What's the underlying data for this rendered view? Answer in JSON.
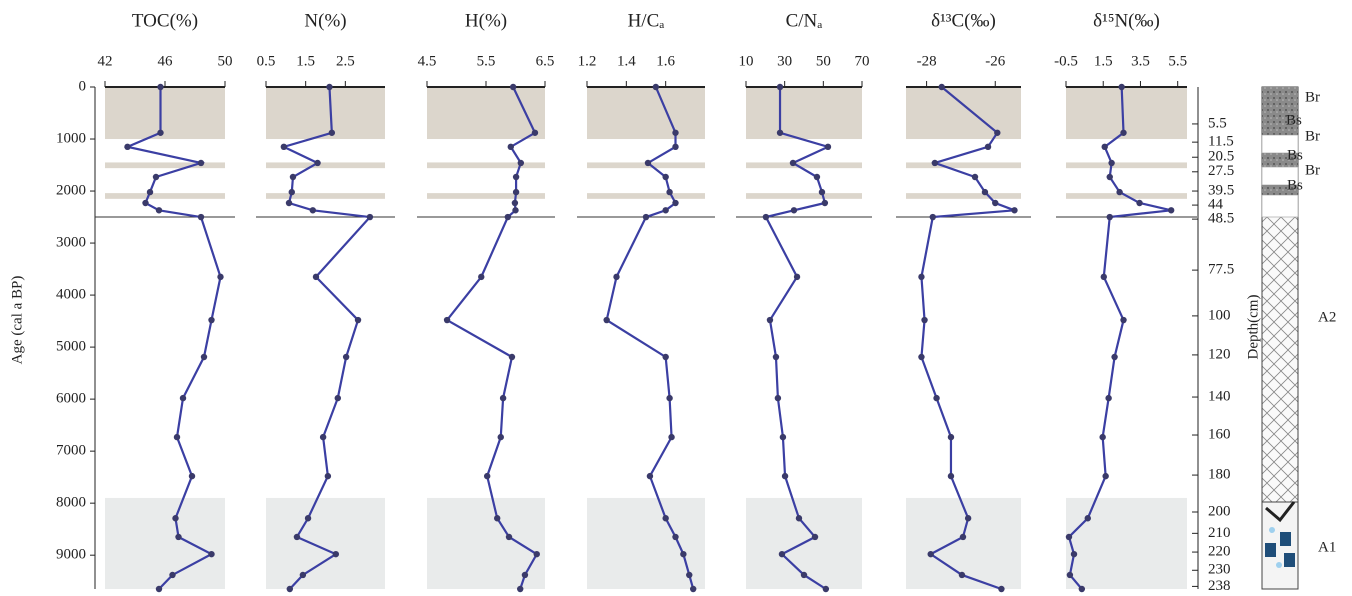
{
  "chart_data": {
    "type": "line",
    "ylabel": "Age (cal a BP)",
    "y": [
      0,
      880,
      1150,
      1460,
      1730,
      2020,
      2230,
      2370,
      2500,
      3650,
      4480,
      5190,
      5980,
      6730,
      7480,
      8290,
      8650,
      8980,
      9380,
      9650
    ],
    "ylim": [
      0,
      9650
    ],
    "yticks": [
      0,
      1000,
      2000,
      3000,
      4000,
      5000,
      6000,
      7000,
      8000,
      9000
    ],
    "color": "#3b3fa3",
    "marker_color": "#3a3a6a",
    "shaded": [
      {
        "range": [
          0,
          1000
        ],
        "color": "#dcd6cc"
      },
      {
        "range": [
          1450,
          1560
        ],
        "color": "#dcd6cc"
      },
      {
        "range": [
          2040,
          2150
        ],
        "color": "#dcd6cc"
      },
      {
        "range": [
          7900,
          9650
        ],
        "color": "#e9ebeb"
      }
    ],
    "divider": 2500,
    "panels": [
      {
        "title": "TOC(%)",
        "xlim": [
          42,
          50
        ],
        "xticks": [
          42,
          46,
          50
        ],
        "values": [
          45.7,
          45.7,
          43.5,
          48.4,
          45.4,
          45.0,
          44.7,
          45.6,
          48.4,
          49.7,
          49.1,
          48.6,
          47.2,
          46.8,
          47.8,
          46.7,
          46.9,
          49.1,
          46.5,
          45.6
        ]
      },
      {
        "title": "N(%)",
        "xlim": [
          0.5,
          3.5
        ],
        "xticks": [
          0.5,
          1.5,
          2.5
        ],
        "values": [
          2.1,
          2.16,
          0.95,
          1.8,
          1.18,
          1.15,
          1.08,
          1.68,
          3.12,
          1.76,
          2.82,
          2.52,
          2.31,
          1.94,
          2.06,
          1.56,
          1.28,
          2.26,
          1.43,
          1.1
        ]
      },
      {
        "title": "H(%)",
        "xlim": [
          4.5,
          6.5
        ],
        "xticks": [
          4.5,
          5.5,
          6.5
        ],
        "values": [
          5.96,
          6.33,
          5.92,
          6.09,
          6.01,
          6.01,
          5.99,
          6.0,
          5.87,
          5.42,
          4.84,
          5.94,
          5.79,
          5.75,
          5.52,
          5.69,
          5.89,
          6.36,
          6.16,
          6.08
        ]
      },
      {
        "title": "H/Cₐ",
        "xlim": [
          1.2,
          1.8
        ],
        "xticks": [
          1.2,
          1.4,
          1.6
        ],
        "values": [
          1.55,
          1.65,
          1.65,
          1.51,
          1.6,
          1.62,
          1.65,
          1.6,
          1.5,
          1.35,
          1.3,
          1.6,
          1.62,
          1.63,
          1.52,
          1.6,
          1.65,
          1.69,
          1.72,
          1.74
        ]
      },
      {
        "title": "C/Nₐ",
        "xlim": [
          10,
          70
        ],
        "xticks": [
          10,
          30,
          50,
          70
        ],
        "values": [
          27.6,
          27.6,
          52.4,
          34.3,
          46.7,
          49.3,
          50.8,
          34.8,
          20.3,
          36.4,
          22.4,
          25.5,
          26.5,
          29.1,
          30.2,
          37.4,
          45.7,
          28.6,
          40.0,
          51.3
        ]
      },
      {
        "title": "δ¹³C(‰)",
        "xlim": [
          -28.6,
          -25.25
        ],
        "xticks": [
          -28,
          -26
        ],
        "values": [
          -27.56,
          -25.94,
          -26.21,
          -27.76,
          -26.59,
          -26.3,
          -26.0,
          -25.44,
          -27.82,
          -28.15,
          -28.06,
          -28.15,
          -27.71,
          -27.29,
          -27.29,
          -26.79,
          -26.94,
          -27.88,
          -26.97,
          -25.82
        ]
      },
      {
        "title": "δ¹⁵N(‰)",
        "xlim": [
          -0.5,
          6.0
        ],
        "xticks": [
          -0.5,
          1.5,
          3.5,
          5.5
        ],
        "values": [
          2.49,
          2.59,
          1.58,
          1.95,
          1.85,
          2.38,
          3.45,
          5.15,
          1.85,
          1.53,
          2.59,
          2.11,
          1.79,
          1.47,
          1.63,
          0.67,
          -0.34,
          -0.07,
          -0.29,
          0.35
        ]
      }
    ],
    "depth_axis": {
      "label": "Depth(cm)",
      "ticks": [
        {
          "value": 710,
          "label": "5.5"
        },
        {
          "value": 1060,
          "label": "11.5"
        },
        {
          "value": 1350,
          "label": "20.5"
        },
        {
          "value": 1630,
          "label": "27.5"
        },
        {
          "value": 2000,
          "label": "39.5"
        },
        {
          "value": 2270,
          "label": "44"
        },
        {
          "value": 2540,
          "label": "48.5"
        },
        {
          "value": 3520,
          "label": "77.5"
        },
        {
          "value": 4400,
          "label": "100"
        },
        {
          "value": 5150,
          "label": "120"
        },
        {
          "value": 5960,
          "label": "140"
        },
        {
          "value": 6690,
          "label": "160"
        },
        {
          "value": 7460,
          "label": "180"
        },
        {
          "value": 8170,
          "label": "200"
        },
        {
          "value": 8580,
          "label": "210"
        },
        {
          "value": 8940,
          "label": "220"
        },
        {
          "value": 9290,
          "label": "230"
        },
        {
          "value": 9600,
          "label": "238"
        }
      ]
    },
    "horizons": [
      "Br",
      "Bs",
      "Br",
      "Bs",
      "Br",
      "Bs",
      "A2",
      "A1"
    ]
  }
}
